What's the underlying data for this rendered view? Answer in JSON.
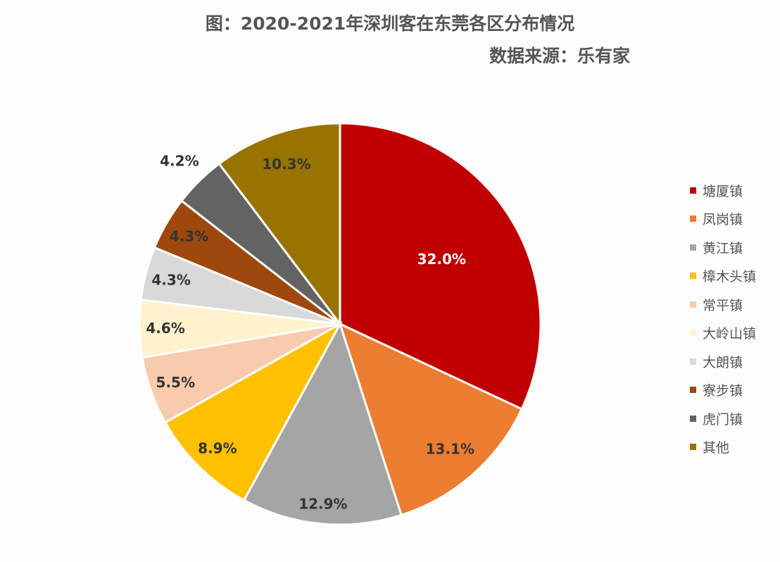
{
  "chart_data": {
    "type": "pie",
    "title": "图：2020-2021年深圳客在东莞各区分布情况",
    "subtitle": "数据来源：乐有家",
    "watermark": "乐有家",
    "start": "12 o'clock, clockwise",
    "legend_position": "right",
    "categories": [
      "塘厦镇",
      "凤岗镇",
      "黄江镇",
      "樟木头镇",
      "常平镇",
      "大岭山镇",
      "大朗镇",
      "寮步镇",
      "虎门镇",
      "其他"
    ],
    "values": [
      32.0,
      13.1,
      12.9,
      8.9,
      5.5,
      4.6,
      4.3,
      4.3,
      4.2,
      10.3
    ],
    "labels": [
      "32.0%",
      "13.1%",
      "12.9%",
      "8.9%",
      "5.5%",
      "4.6%",
      "4.3%",
      "4.3%",
      "4.2%",
      "10.3%"
    ],
    "colors": [
      "#C00000",
      "#ED7D31",
      "#A5A5A5",
      "#FFC000",
      "#F8CBAD",
      "#FFF2CC",
      "#D9D9D9",
      "#9E480E",
      "#636363",
      "#997300"
    ]
  }
}
